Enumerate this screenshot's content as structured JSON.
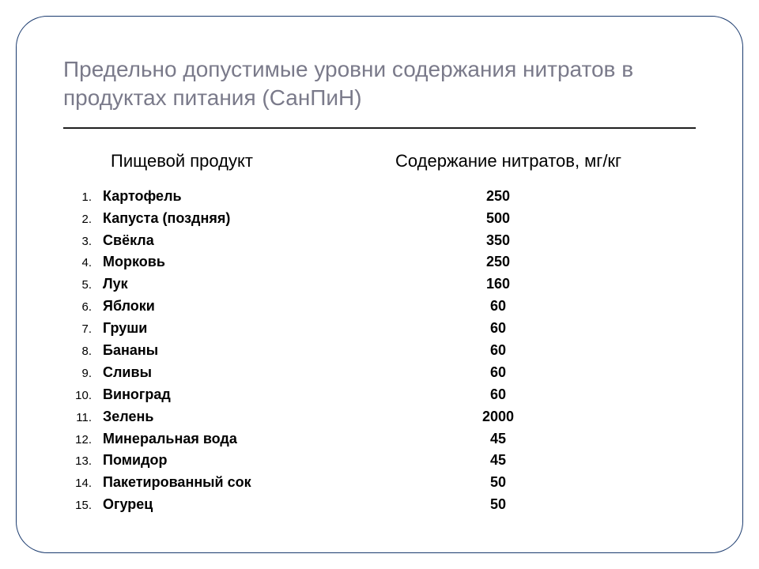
{
  "title": "Предельно допустимые уровни содержания нитратов в продуктах питания (СанПиН)",
  "table": {
    "type": "table",
    "columns": [
      "Пищевой продукт",
      "Содержание нитратов, мг/кг"
    ],
    "rows": [
      {
        "n": "1.",
        "name": "Картофель",
        "value": "250"
      },
      {
        "n": "2.",
        "name": "Капуста (поздняя)",
        "value": "500"
      },
      {
        "n": "3.",
        "name": "Свёкла",
        "value": "350"
      },
      {
        "n": "4.",
        "name": "Морковь",
        "value": "250"
      },
      {
        "n": "5.",
        "name": "Лук",
        "value": "160"
      },
      {
        "n": "6.",
        "name": "Яблоки",
        "value": "60"
      },
      {
        "n": "7.",
        "name": "Груши",
        "value": "60"
      },
      {
        "n": "8.",
        "name": "Бананы",
        "value": "60"
      },
      {
        "n": "9.",
        "name": "Сливы",
        "value": "60"
      },
      {
        "n": "10.",
        "name": "Виноград",
        "value": "60"
      },
      {
        "n": "11.",
        "name": "Зелень",
        "value": "2000"
      },
      {
        "n": "12.",
        "name": "Минеральная вода",
        "value": "45"
      },
      {
        "n": "13.",
        "name": "Помидор",
        "value": "45"
      },
      {
        "n": "14.",
        "name": "Пакетированный сок",
        "value": "50"
      },
      {
        "n": "15.",
        "name": "Огурец",
        "value": "50"
      }
    ],
    "style": {
      "title_color": "#7a7a8a",
      "title_fontsize": 28,
      "header_fontsize": 22,
      "row_fontsize": 18,
      "row_fontweight": "bold",
      "number_fontsize": 15,
      "border_color": "#1a3a6e",
      "border_radius": 40,
      "underline_color": "#202020",
      "background_color": "#ffffff",
      "text_color": "#000000"
    }
  }
}
